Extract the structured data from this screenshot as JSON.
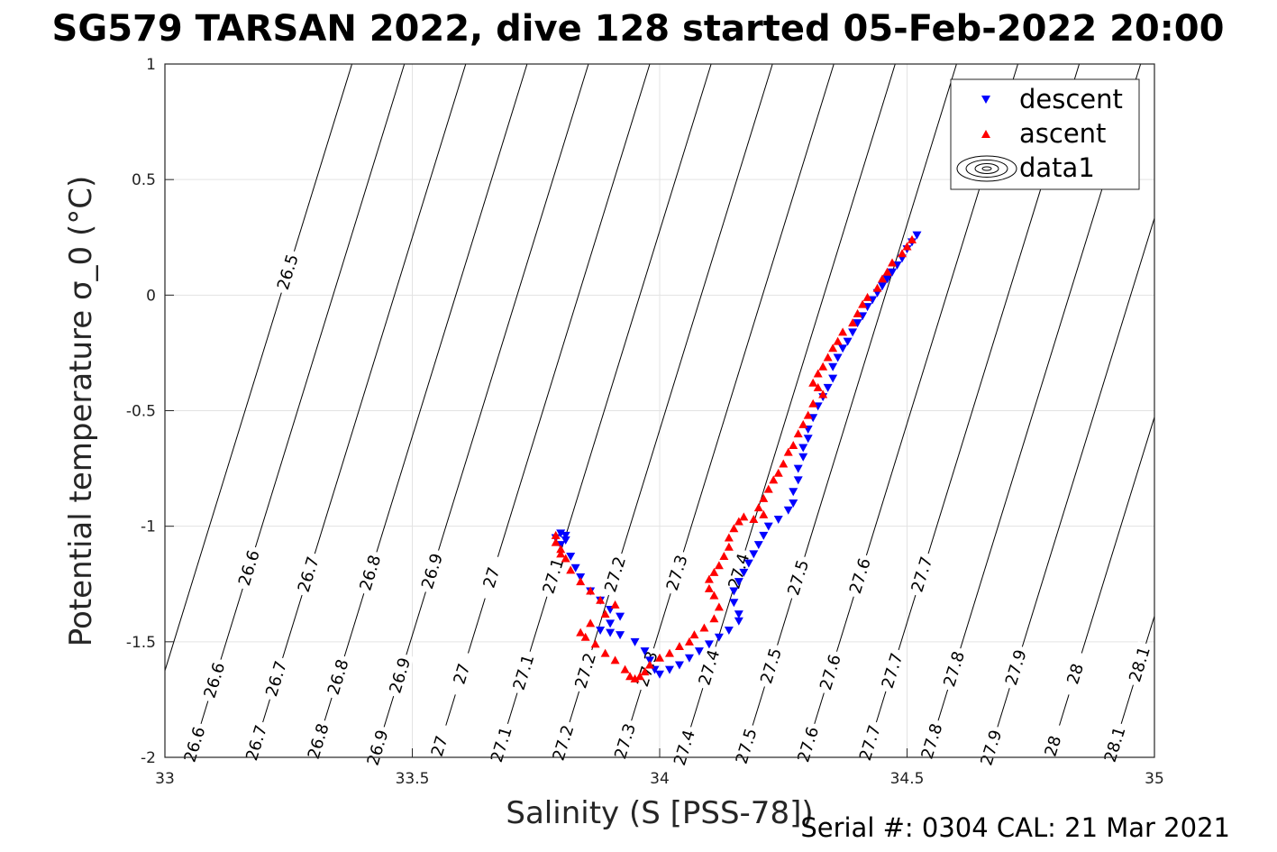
{
  "chart_data": {
    "type": "scatter",
    "title": "SG579 TARSAN 2022, dive 128 started 05-Feb-2022 20:00",
    "xlabel": "Salinity (S [PSS-78])",
    "ylabel": "Potential temperature σ_0 (°C)",
    "xlim": [
      33,
      35
    ],
    "ylim": [
      -2,
      1
    ],
    "xticks": [
      "33",
      "33.5",
      "34",
      "34.5",
      "35"
    ],
    "yticks": [
      "1",
      "0.5",
      "0",
      "-0.5",
      "-1",
      "-1.5",
      "-2"
    ],
    "grid": true,
    "legend_position": "top-right",
    "legend": [
      {
        "label": "descent",
        "marker": "triangle-down",
        "color": "#0000ff"
      },
      {
        "label": "ascent",
        "marker": "triangle-up",
        "color": "#ff0000"
      },
      {
        "label": "data1",
        "marker": "contour-ellipses",
        "color": "#000000"
      }
    ],
    "isopycnals": {
      "levels": [
        "26.5",
        "26.6",
        "26.7",
        "26.8",
        "26.9",
        "27",
        "27.1",
        "27.2",
        "27.3",
        "27.4",
        "27.5",
        "27.6",
        "27.7",
        "27.8",
        "27.9",
        "28",
        "28.1"
      ],
      "x_at_ymin": [
        32.946,
        33.052,
        33.176,
        33.3,
        33.424,
        33.548,
        33.672,
        33.796,
        33.92,
        34.044,
        34.168,
        34.292,
        34.416,
        34.54,
        34.664,
        34.788,
        34.912
      ],
      "dx_per_degree": 0.144,
      "labels_top": [
        {
          "level": "26.6",
          "x": 33.17
        },
        {
          "level": "26.7",
          "x": 33.29
        },
        {
          "level": "26.8",
          "x": 33.415
        },
        {
          "level": "26.9",
          "x": 33.54
        },
        {
          "level": "27",
          "x": 33.66
        },
        {
          "level": "27.1",
          "x": 33.785
        },
        {
          "level": "27.2",
          "x": 33.91
        },
        {
          "level": "27.3",
          "x": 34.035
        },
        {
          "level": "27.4",
          "x": 34.16
        },
        {
          "level": "27.5",
          "x": 34.28
        },
        {
          "level": "27.6",
          "x": 34.405
        },
        {
          "level": "27.7",
          "x": 34.53
        }
      ],
      "labels_left": [
        {
          "level": "26.5",
          "y": 0.1
        }
      ],
      "labels_middle": [
        {
          "level": "26.6",
          "x": 33.1
        },
        {
          "level": "26.7",
          "x": 33.225
        },
        {
          "level": "26.8",
          "x": 33.35
        },
        {
          "level": "26.9",
          "x": 33.475
        },
        {
          "level": "27",
          "x": 33.6
        },
        {
          "level": "27.1",
          "x": 33.725
        },
        {
          "level": "27.2",
          "x": 33.85
        },
        {
          "level": "27.3",
          "x": 33.975
        },
        {
          "level": "27.4",
          "x": 34.1
        },
        {
          "level": "27.5",
          "x": 34.225
        },
        {
          "level": "27.6",
          "x": 34.345
        },
        {
          "level": "27.7",
          "x": 34.47
        },
        {
          "level": "27.8",
          "x": 34.595
        },
        {
          "level": "27.9",
          "x": 34.72
        },
        {
          "level": "28",
          "x": 34.84
        },
        {
          "level": "28.1",
          "x": 34.97
        }
      ],
      "labels_bottom": [
        {
          "level": "26.6",
          "x": 33.06
        },
        {
          "level": "26.7",
          "x": 33.185
        },
        {
          "level": "26.8",
          "x": 33.31
        },
        {
          "level": "26.9",
          "x": 33.43
        },
        {
          "level": "27",
          "x": 33.555
        },
        {
          "level": "27.1",
          "x": 33.68
        },
        {
          "level": "27.2",
          "x": 33.805
        },
        {
          "level": "27.3",
          "x": 33.93
        },
        {
          "level": "27.4",
          "x": 34.05
        },
        {
          "level": "27.5",
          "x": 34.175
        },
        {
          "level": "27.6",
          "x": 34.3
        },
        {
          "level": "27.7",
          "x": 34.425
        },
        {
          "level": "27.8",
          "x": 34.55
        },
        {
          "level": "27.9",
          "x": 34.67
        },
        {
          "level": "28",
          "x": 34.795
        },
        {
          "level": "28.1",
          "x": 34.92
        }
      ]
    },
    "series": [
      {
        "name": "descent",
        "marker": "triangle-down",
        "color": "#0000ff",
        "points": [
          [
            34.52,
            0.26
          ],
          [
            34.51,
            0.23
          ],
          [
            34.5,
            0.2
          ],
          [
            34.49,
            0.16
          ],
          [
            34.48,
            0.13
          ],
          [
            34.47,
            0.1
          ],
          [
            34.46,
            0.07
          ],
          [
            34.45,
            0.04
          ],
          [
            34.44,
            0.01
          ],
          [
            34.43,
            -0.02
          ],
          [
            34.42,
            -0.05
          ],
          [
            34.41,
            -0.09
          ],
          [
            34.4,
            -0.12
          ],
          [
            34.39,
            -0.16
          ],
          [
            34.38,
            -0.2
          ],
          [
            34.37,
            -0.23
          ],
          [
            34.36,
            -0.27
          ],
          [
            34.35,
            -0.31
          ],
          [
            34.35,
            -0.36
          ],
          [
            34.34,
            -0.4
          ],
          [
            34.33,
            -0.44
          ],
          [
            34.32,
            -0.48
          ],
          [
            34.31,
            -0.53
          ],
          [
            34.3,
            -0.58
          ],
          [
            34.3,
            -0.62
          ],
          [
            34.29,
            -0.66
          ],
          [
            34.29,
            -0.7
          ],
          [
            34.28,
            -0.75
          ],
          [
            34.28,
            -0.8
          ],
          [
            34.27,
            -0.85
          ],
          [
            34.27,
            -0.9
          ],
          [
            34.26,
            -0.93
          ],
          [
            34.24,
            -0.97
          ],
          [
            34.22,
            -1.0
          ],
          [
            34.21,
            -1.04
          ],
          [
            34.2,
            -1.08
          ],
          [
            34.19,
            -1.12
          ],
          [
            34.18,
            -1.16
          ],
          [
            34.17,
            -1.2
          ],
          [
            34.16,
            -1.24
          ],
          [
            34.15,
            -1.28
          ],
          [
            34.15,
            -1.33
          ],
          [
            34.16,
            -1.38
          ],
          [
            34.16,
            -1.41
          ],
          [
            34.14,
            -1.45
          ],
          [
            34.12,
            -1.48
          ],
          [
            34.1,
            -1.51
          ],
          [
            34.08,
            -1.54
          ],
          [
            34.06,
            -1.57
          ],
          [
            34.04,
            -1.6
          ],
          [
            34.02,
            -1.62
          ],
          [
            34.0,
            -1.64
          ],
          [
            33.99,
            -1.62
          ],
          [
            33.98,
            -1.58
          ],
          [
            33.97,
            -1.54
          ],
          [
            33.95,
            -1.5
          ],
          [
            33.92,
            -1.47
          ],
          [
            33.9,
            -1.46
          ],
          [
            33.88,
            -1.45
          ],
          [
            33.9,
            -1.42
          ],
          [
            33.92,
            -1.39
          ],
          [
            33.9,
            -1.36
          ],
          [
            33.88,
            -1.32
          ],
          [
            33.86,
            -1.28
          ],
          [
            33.84,
            -1.22
          ],
          [
            33.83,
            -1.18
          ],
          [
            33.82,
            -1.13
          ],
          [
            33.8,
            -1.08
          ],
          [
            33.79,
            -1.05
          ],
          [
            33.8,
            -1.03
          ],
          [
            33.81,
            -1.04
          ],
          [
            33.81,
            -1.06
          ]
        ]
      },
      {
        "name": "ascent",
        "marker": "triangle-up",
        "color": "#ff0000",
        "points": [
          [
            34.51,
            0.24
          ],
          [
            34.5,
            0.21
          ],
          [
            34.49,
            0.18
          ],
          [
            34.47,
            0.14
          ],
          [
            34.46,
            0.1
          ],
          [
            34.45,
            0.07
          ],
          [
            34.44,
            0.03
          ],
          [
            34.42,
            -0.01
          ],
          [
            34.41,
            -0.04
          ],
          [
            34.4,
            -0.08
          ],
          [
            34.39,
            -0.12
          ],
          [
            34.37,
            -0.16
          ],
          [
            34.36,
            -0.2
          ],
          [
            34.35,
            -0.23
          ],
          [
            34.34,
            -0.27
          ],
          [
            34.33,
            -0.31
          ],
          [
            34.32,
            -0.34
          ],
          [
            34.31,
            -0.38
          ],
          [
            34.32,
            -0.4
          ],
          [
            34.33,
            -0.43
          ],
          [
            34.31,
            -0.47
          ],
          [
            34.3,
            -0.52
          ],
          [
            34.29,
            -0.56
          ],
          [
            34.28,
            -0.6
          ],
          [
            34.27,
            -0.65
          ],
          [
            34.26,
            -0.68
          ],
          [
            34.25,
            -0.73
          ],
          [
            34.24,
            -0.77
          ],
          [
            34.23,
            -0.8
          ],
          [
            34.22,
            -0.84
          ],
          [
            34.21,
            -0.88
          ],
          [
            34.2,
            -0.92
          ],
          [
            34.21,
            -0.95
          ],
          [
            34.19,
            -0.97
          ],
          [
            34.17,
            -0.96
          ],
          [
            34.16,
            -0.98
          ],
          [
            34.15,
            -1.01
          ],
          [
            34.14,
            -1.05
          ],
          [
            34.14,
            -1.09
          ],
          [
            34.13,
            -1.13
          ],
          [
            34.12,
            -1.17
          ],
          [
            34.11,
            -1.2
          ],
          [
            34.1,
            -1.23
          ],
          [
            34.1,
            -1.27
          ],
          [
            34.11,
            -1.3
          ],
          [
            34.12,
            -1.35
          ],
          [
            34.11,
            -1.4
          ],
          [
            34.09,
            -1.44
          ],
          [
            34.07,
            -1.47
          ],
          [
            34.06,
            -1.5
          ],
          [
            34.04,
            -1.52
          ],
          [
            34.02,
            -1.55
          ],
          [
            34.0,
            -1.57
          ],
          [
            33.98,
            -1.6
          ],
          [
            33.97,
            -1.63
          ],
          [
            33.96,
            -1.65
          ],
          [
            33.95,
            -1.66
          ],
          [
            33.94,
            -1.65
          ],
          [
            33.93,
            -1.62
          ],
          [
            33.91,
            -1.58
          ],
          [
            33.89,
            -1.55
          ],
          [
            33.87,
            -1.51
          ],
          [
            33.85,
            -1.48
          ],
          [
            33.84,
            -1.46
          ],
          [
            33.86,
            -1.42
          ],
          [
            33.89,
            -1.38
          ],
          [
            33.91,
            -1.34
          ],
          [
            33.88,
            -1.32
          ],
          [
            33.86,
            -1.28
          ],
          [
            33.84,
            -1.24
          ],
          [
            33.82,
            -1.19
          ],
          [
            33.81,
            -1.14
          ],
          [
            33.8,
            -1.1
          ],
          [
            33.79,
            -1.07
          ],
          [
            33.79,
            -1.04
          ],
          [
            33.8,
            -1.12
          ]
        ]
      }
    ]
  },
  "footer": {
    "serial": "Serial #: 0304  CAL: 21 Mar 2021"
  }
}
